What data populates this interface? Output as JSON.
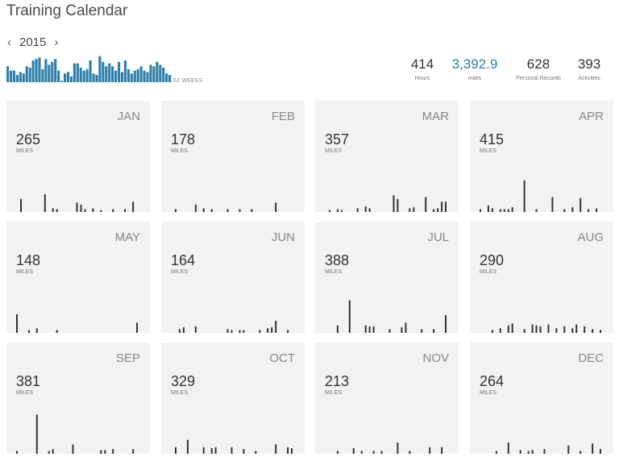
{
  "page": {
    "title": "Training Calendar"
  },
  "year_nav": {
    "prev_icon": "chevron-left-icon",
    "year": "2015",
    "next_icon": "chevron-right-icon"
  },
  "weekly": {
    "label": "52 WEEKS",
    "accent_color": "#2f7fa8",
    "values": [
      55,
      40,
      40,
      25,
      35,
      30,
      55,
      50,
      75,
      80,
      85,
      45,
      80,
      60,
      70,
      80,
      40,
      5,
      30,
      35,
      20,
      65,
      65,
      50,
      40,
      45,
      75,
      30,
      25,
      90,
      70,
      55,
      65,
      55,
      40,
      70,
      35,
      75,
      45,
      30,
      40,
      45,
      55,
      40,
      35,
      60,
      55,
      70,
      60,
      50,
      30,
      25
    ]
  },
  "summary": [
    {
      "value": "414",
      "label": "Hours"
    },
    {
      "value": "3,392.9",
      "label": "miles"
    },
    {
      "value": "628",
      "label": "Personal Records"
    },
    {
      "value": "393",
      "label": "Activities"
    }
  ],
  "months": [
    {
      "name": "JAN",
      "miles": "265",
      "unit": "MILES",
      "days": [
        0,
        0,
        0,
        0,
        0,
        0,
        0,
        12,
        0,
        0,
        0,
        0,
        0,
        0,
        0,
        0,
        0,
        0,
        0,
        0,
        0,
        0,
        0,
        0,
        3,
        0,
        0,
        0,
        0,
        0,
        0,
        0,
        0,
        0,
        0,
        0,
        0,
        0,
        0,
        0,
        0,
        0,
        15,
        0,
        0,
        3,
        0,
        0,
        2,
        0,
        0,
        0,
        0,
        0,
        0,
        0,
        0,
        0,
        9,
        0,
        0,
        8,
        0,
        0,
        0,
        3,
        0,
        0,
        0,
        0,
        3,
        0,
        0,
        0,
        0,
        2,
        0,
        0,
        0,
        0,
        0,
        0,
        3,
        0,
        0,
        0,
        0,
        0,
        2,
        0,
        0,
        0,
        0,
        0,
        0,
        0,
        9,
        0,
        0,
        0,
        0
      ]
    },
    {
      "name": "FEB",
      "miles": "178",
      "unit": "MILES",
      "days": [
        0,
        0,
        0,
        0,
        0,
        0,
        3,
        0,
        0,
        2,
        0,
        0,
        3,
        0,
        0,
        0,
        0,
        0,
        0,
        0,
        0,
        0,
        0,
        0,
        0,
        0,
        0,
        0,
        0,
        0,
        0,
        0,
        0,
        0,
        0,
        0,
        0,
        0,
        0,
        0,
        5,
        0,
        0,
        2,
        0,
        3,
        0,
        0,
        0,
        3,
        0,
        0,
        0,
        0,
        0,
        0,
        0,
        0,
        0,
        0,
        0,
        0,
        0,
        2,
        0,
        0,
        0,
        0,
        0,
        0,
        0,
        0,
        2,
        0,
        0,
        0,
        0,
        0,
        0,
        3,
        0,
        0,
        0,
        0,
        0,
        0,
        0,
        0,
        0,
        0,
        0,
        0,
        0,
        0,
        0,
        0,
        3,
        0,
        0,
        0,
        0,
        0,
        0,
        0,
        0,
        0,
        0,
        0,
        0,
        0,
        0,
        0,
        0,
        0,
        0,
        0,
        0,
        0,
        0,
        0,
        0,
        0,
        9,
        0,
        0,
        0,
        0,
        0,
        0,
        0,
        0
      ]
    },
    {
      "name": "MAR",
      "miles": "357",
      "unit": "MILES",
      "days": [
        0,
        0,
        0,
        0,
        0,
        0,
        0,
        0,
        0,
        0,
        0,
        0,
        0,
        0,
        0,
        0,
        0,
        0,
        0,
        0,
        0,
        2,
        0,
        0,
        0,
        0,
        0,
        0,
        0,
        0,
        0,
        0,
        0,
        0,
        0,
        0,
        0,
        0,
        0,
        0,
        0,
        0,
        0,
        0,
        0,
        0,
        0,
        0,
        0,
        0,
        0,
        0,
        0,
        2,
        0,
        0,
        0,
        0,
        0,
        0,
        0,
        0,
        0,
        0,
        0,
        0,
        3,
        0,
        3,
        0,
        0,
        0,
        0,
        0,
        0,
        0,
        0,
        0,
        0,
        0,
        0,
        0,
        2,
        0,
        0,
        4,
        0,
        0,
        0,
        0,
        0,
        0,
        0,
        0,
        0,
        0,
        0,
        0,
        0,
        0,
        0,
        0,
        0,
        0,
        0,
        0,
        0,
        0,
        0,
        0,
        0,
        0,
        0,
        0,
        0,
        0,
        0,
        0,
        0,
        0,
        0,
        0,
        0,
        0,
        0,
        0,
        0,
        0,
        0,
        0,
        0,
        0,
        0,
        0,
        0,
        0,
        0,
        0,
        0,
        2,
        0,
        0,
        0,
        0,
        3,
        0,
        0,
        0,
        0,
        0,
        0,
        0,
        0,
        0,
        0,
        0,
        0,
        0,
        0,
        0,
        0,
        0,
        0,
        0,
        0,
        0,
        0,
        0,
        0
      ]
    },
    {
      "name": "APR",
      "miles": "415",
      "unit": "MILES",
      "days": [
        2,
        0,
        0,
        0,
        5,
        0,
        0,
        0,
        0,
        0,
        0,
        0,
        2,
        0,
        0,
        15,
        0,
        3,
        0,
        0,
        2,
        2,
        0,
        0,
        3,
        0,
        9,
        0,
        0,
        0,
        0,
        0,
        0,
        0,
        0,
        0,
        0,
        0,
        3,
        0,
        0,
        0,
        0,
        0,
        0,
        0,
        0,
        0,
        0,
        0,
        0,
        0,
        0,
        0,
        0,
        0,
        0,
        0,
        0,
        0,
        0,
        0,
        0,
        0,
        0,
        0,
        0,
        0,
        0,
        2
      ]
    }
  ],
  "months_text": [
    {
      "name": "JAN",
      "miles": "265",
      "unit": "MILES"
    },
    {
      "name": "FEB",
      "miles": "178",
      "unit": "MILES"
    },
    {
      "name": "MAR",
      "miles": "357",
      "unit": "MILES"
    },
    {
      "name": "APR",
      "miles": "415",
      "unit": "MILES"
    },
    {
      "name": "MAY",
      "miles": "148",
      "unit": "MILES"
    },
    {
      "name": "JUN",
      "miles": "164",
      "unit": "MILES"
    },
    {
      "name": "JUL",
      "miles": "388",
      "unit": "MILES"
    },
    {
      "name": "AUG",
      "miles": "290",
      "unit": "MILES"
    },
    {
      "name": "SEP",
      "miles": "381",
      "unit": "MILES"
    },
    {
      "name": "OCT",
      "miles": "329",
      "unit": "MILES"
    },
    {
      "name": "NOV",
      "miles": "213",
      "unit": "MILES"
    },
    {
      "name": "DEC",
      "miles": "264",
      "unit": "MILES"
    }
  ],
  "daily_miles": [
    [
      0,
      14,
      0,
      0,
      0,
      0,
      0,
      19,
      0,
      4,
      3,
      0,
      0,
      0,
      0,
      10,
      8,
      3,
      0,
      4,
      0,
      2,
      0,
      0,
      3,
      0,
      0,
      3,
      0,
      11,
      0
    ],
    [
      0,
      3,
      0,
      0,
      0,
      0,
      8,
      0,
      4,
      0,
      3,
      0,
      0,
      0,
      3,
      0,
      0,
      3,
      0,
      0,
      3,
      0,
      0,
      0,
      0,
      0,
      10,
      0,
      0
    ],
    [
      0,
      2,
      0,
      3,
      2,
      0,
      0,
      0,
      4,
      0,
      6,
      4,
      0,
      0,
      0,
      0,
      0,
      18,
      14,
      0,
      0,
      4,
      5,
      0,
      0,
      16,
      0,
      3,
      4,
      11,
      11
    ],
    [
      3,
      0,
      7,
      4,
      0,
      3,
      3,
      3,
      5,
      0,
      0,
      34,
      0,
      0,
      3,
      0,
      0,
      0,
      16,
      0,
      0,
      3,
      0,
      5,
      0,
      15,
      0,
      3,
      0,
      4
    ],
    [
      20,
      0,
      0,
      3,
      0,
      5,
      0,
      0,
      0,
      0,
      3,
      0,
      0,
      0,
      0,
      0,
      0,
      0,
      0,
      0,
      0,
      0,
      0,
      0,
      0,
      0,
      0,
      0,
      0,
      0,
      11
    ],
    [
      0,
      0,
      4,
      6,
      0,
      0,
      7,
      0,
      0,
      0,
      0,
      0,
      0,
      0,
      4,
      3,
      0,
      3,
      3,
      0,
      0,
      0,
      3,
      0,
      5,
      6,
      13,
      0,
      0,
      3
    ],
    [
      0,
      0,
      0,
      8,
      0,
      0,
      35,
      0,
      0,
      0,
      8,
      7,
      7,
      0,
      0,
      0,
      4,
      0,
      0,
      6,
      11,
      0,
      0,
      0,
      4,
      0,
      0,
      4,
      0,
      0,
      19
    ],
    [
      0,
      0,
      0,
      3,
      0,
      5,
      0,
      8,
      10,
      0,
      0,
      4,
      0,
      9,
      8,
      7,
      0,
      9,
      0,
      5,
      0,
      7,
      0,
      5,
      9,
      0,
      7,
      0,
      4,
      0,
      3
    ],
    [
      3,
      0,
      0,
      0,
      0,
      42,
      0,
      0,
      3,
      5,
      0,
      0,
      0,
      0,
      10,
      0,
      0,
      0,
      0,
      0,
      0,
      4,
      4,
      0,
      5,
      0,
      0,
      0,
      0,
      5,
      0
    ],
    [
      0,
      7,
      0,
      0,
      15,
      0,
      0,
      0,
      7,
      0,
      6,
      7,
      0,
      0,
      0,
      7,
      0,
      0,
      5,
      0,
      0,
      3,
      0,
      0,
      0,
      0,
      10,
      0,
      0,
      7,
      6
    ],
    [
      0,
      0,
      0,
      3,
      0,
      0,
      0,
      6,
      0,
      3,
      0,
      0,
      3,
      0,
      3,
      0,
      0,
      0,
      12,
      0,
      0,
      3,
      0,
      0,
      0,
      0,
      7,
      0,
      0,
      7,
      0
    ],
    [
      0,
      0,
      0,
      0,
      3,
      0,
      0,
      12,
      0,
      0,
      4,
      0,
      3,
      4,
      0,
      0,
      5,
      0,
      0,
      0,
      0,
      0,
      9,
      0,
      0,
      3,
      0,
      0,
      11,
      0,
      5
    ]
  ]
}
